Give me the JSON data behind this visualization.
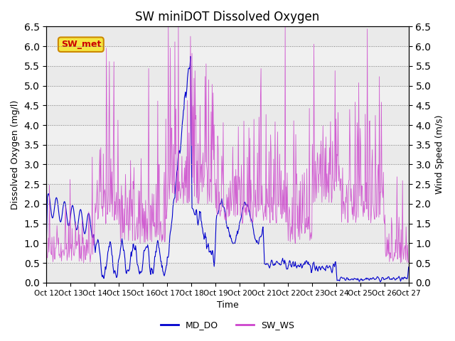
{
  "title": "SW miniDOT Dissolved Oxygen",
  "ylabel_left": "Dissolved Oxygen (mg/l)",
  "ylabel_right": "Wind Speed (m/s)",
  "xlabel": "Time",
  "ylim": [
    0,
    6.5
  ],
  "color_do": "#0000CD",
  "color_ws": "#CC44CC",
  "legend_label_do": "MD_DO",
  "legend_label_ws": "SW_WS",
  "annotation_text": "SW_met",
  "annotation_color": "#CC0000",
  "annotation_bg": "#F5E642",
  "annotation_edge": "#CC8800",
  "x_tick_labels": [
    "Oct 12",
    "Oct 13",
    "Oct 14",
    "Oct 15",
    "Oct 16",
    "Oct 17",
    "Oct 18",
    "Oct 19",
    "Oct 20",
    "Oct 21",
    "Oct 22",
    "Oct 23",
    "Oct 24",
    "Oct 25",
    "Oct 26",
    "Oct 27"
  ],
  "background_color": "#f0f0f0",
  "axes_bg": "#f0f0f0"
}
